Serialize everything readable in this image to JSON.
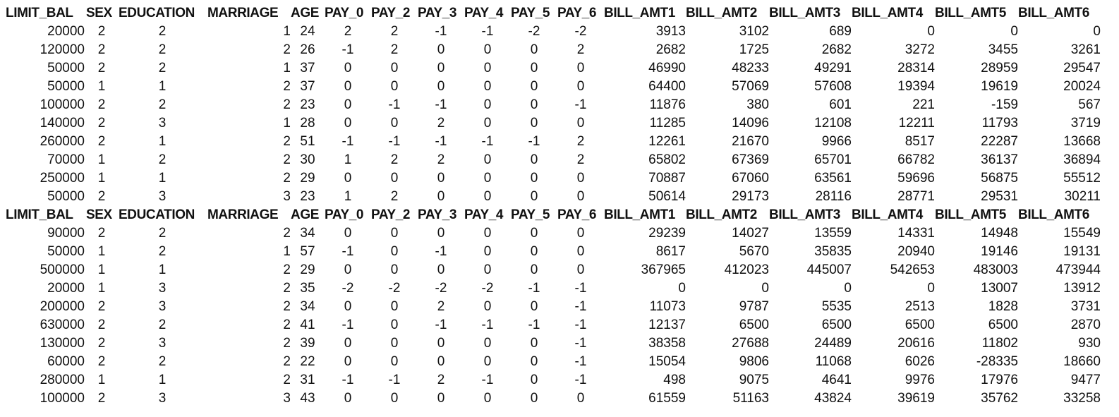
{
  "tables": [
    {
      "headers": [
        "LIMIT_BAL",
        "SEX",
        "EDUCATION",
        "MARRIAGE",
        "AGE",
        "PAY_0",
        "PAY_2",
        "PAY_3",
        "PAY_4",
        "PAY_5",
        "PAY_6",
        "BILL_AMT1",
        "BILL_AMT2",
        "BILL_AMT3",
        "BILL_AMT4",
        "BILL_AMT5",
        "BILL_AMT6"
      ],
      "rows": [
        [
          "20000",
          "2",
          "2",
          "1",
          "24",
          "2",
          "2",
          "-1",
          "-1",
          "-2",
          "-2",
          "3913",
          "3102",
          "689",
          "0",
          "0",
          "0"
        ],
        [
          "120000",
          "2",
          "2",
          "2",
          "26",
          "-1",
          "2",
          "0",
          "0",
          "0",
          "2",
          "2682",
          "1725",
          "2682",
          "3272",
          "3455",
          "3261"
        ],
        [
          "50000",
          "2",
          "2",
          "1",
          "37",
          "0",
          "0",
          "0",
          "0",
          "0",
          "0",
          "46990",
          "48233",
          "49291",
          "28314",
          "28959",
          "29547"
        ],
        [
          "50000",
          "1",
          "1",
          "2",
          "37",
          "0",
          "0",
          "0",
          "0",
          "0",
          "0",
          "64400",
          "57069",
          "57608",
          "19394",
          "19619",
          "20024"
        ],
        [
          "100000",
          "2",
          "2",
          "2",
          "23",
          "0",
          "-1",
          "-1",
          "0",
          "0",
          "-1",
          "11876",
          "380",
          "601",
          "221",
          "-159",
          "567"
        ],
        [
          "140000",
          "2",
          "3",
          "1",
          "28",
          "0",
          "0",
          "2",
          "0",
          "0",
          "0",
          "11285",
          "14096",
          "12108",
          "12211",
          "11793",
          "3719"
        ],
        [
          "260000",
          "2",
          "1",
          "2",
          "51",
          "-1",
          "-1",
          "-1",
          "-1",
          "-1",
          "2",
          "12261",
          "21670",
          "9966",
          "8517",
          "22287",
          "13668"
        ],
        [
          "70000",
          "1",
          "2",
          "2",
          "30",
          "1",
          "2",
          "2",
          "0",
          "0",
          "2",
          "65802",
          "67369",
          "65701",
          "66782",
          "36137",
          "36894"
        ],
        [
          "250000",
          "1",
          "1",
          "2",
          "29",
          "0",
          "0",
          "0",
          "0",
          "0",
          "0",
          "70887",
          "67060",
          "63561",
          "59696",
          "56875",
          "55512"
        ],
        [
          "50000",
          "2",
          "3",
          "3",
          "23",
          "1",
          "2",
          "0",
          "0",
          "0",
          "0",
          "50614",
          "29173",
          "28116",
          "28771",
          "29531",
          "30211"
        ]
      ]
    },
    {
      "headers": [
        "LIMIT_BAL",
        "SEX",
        "EDUCATION",
        "MARRIAGE",
        "AGE",
        "PAY_0",
        "PAY_2",
        "PAY_3",
        "PAY_4",
        "PAY_5",
        "PAY_6",
        "BILL_AMT1",
        "BILL_AMT2",
        "BILL_AMT3",
        "BILL_AMT4",
        "BILL_AMT5",
        "BILL_AMT6"
      ],
      "rows": [
        [
          "90000",
          "2",
          "2",
          "2",
          "34",
          "0",
          "0",
          "0",
          "0",
          "0",
          "0",
          "29239",
          "14027",
          "13559",
          "14331",
          "14948",
          "15549"
        ],
        [
          "50000",
          "1",
          "2",
          "1",
          "57",
          "-1",
          "0",
          "-1",
          "0",
          "0",
          "0",
          "8617",
          "5670",
          "35835",
          "20940",
          "19146",
          "19131"
        ],
        [
          "500000",
          "1",
          "1",
          "2",
          "29",
          "0",
          "0",
          "0",
          "0",
          "0",
          "0",
          "367965",
          "412023",
          "445007",
          "542653",
          "483003",
          "473944"
        ],
        [
          "20000",
          "1",
          "3",
          "2",
          "35",
          "-2",
          "-2",
          "-2",
          "-2",
          "-1",
          "-1",
          "0",
          "0",
          "0",
          "0",
          "13007",
          "13912"
        ],
        [
          "200000",
          "2",
          "3",
          "2",
          "34",
          "0",
          "0",
          "2",
          "0",
          "0",
          "-1",
          "11073",
          "9787",
          "5535",
          "2513",
          "1828",
          "3731"
        ],
        [
          "630000",
          "2",
          "2",
          "2",
          "41",
          "-1",
          "0",
          "-1",
          "-1",
          "-1",
          "-1",
          "12137",
          "6500",
          "6500",
          "6500",
          "6500",
          "2870"
        ],
        [
          "130000",
          "2",
          "3",
          "2",
          "39",
          "0",
          "0",
          "0",
          "0",
          "0",
          "-1",
          "38358",
          "27688",
          "24489",
          "20616",
          "11802",
          "930"
        ],
        [
          "60000",
          "2",
          "2",
          "2",
          "22",
          "0",
          "0",
          "0",
          "0",
          "0",
          "-1",
          "15054",
          "9806",
          "11068",
          "6026",
          "-28335",
          "18660"
        ],
        [
          "280000",
          "1",
          "1",
          "2",
          "31",
          "-1",
          "-1",
          "2",
          "-1",
          "0",
          "-1",
          "498",
          "9075",
          "4641",
          "9976",
          "17976",
          "9477"
        ],
        [
          "100000",
          "2",
          "3",
          "3",
          "43",
          "0",
          "0",
          "0",
          "0",
          "0",
          "0",
          "61559",
          "51163",
          "43824",
          "39619",
          "35762",
          "33258"
        ]
      ]
    }
  ]
}
